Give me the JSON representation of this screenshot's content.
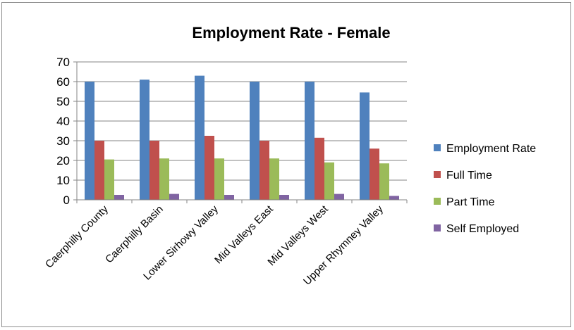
{
  "chart_data": {
    "type": "bar",
    "title": "Employment Rate - Female",
    "xlabel": "",
    "ylabel": "",
    "ylim": [
      0,
      70
    ],
    "yticks": [
      0,
      10,
      20,
      30,
      40,
      50,
      60,
      70
    ],
    "grid": true,
    "legend_position": "right",
    "categories": [
      "Caerphilly County",
      "Caerphilly Basin",
      "Lower Sirhowy Valley",
      "Mid Valleys East",
      "Mid Valleys West",
      "Upper Rhymney Valley"
    ],
    "series": [
      {
        "name": "Employment Rate",
        "color": "#4f81bd",
        "values": [
          60,
          61,
          63,
          60,
          60,
          54.5
        ]
      },
      {
        "name": "Full Time",
        "color": "#c0504d",
        "values": [
          30,
          30,
          32.5,
          30,
          31.5,
          26
        ]
      },
      {
        "name": "Part Time",
        "color": "#9bbb59",
        "values": [
          20.5,
          21,
          21,
          21,
          19,
          18.5
        ]
      },
      {
        "name": "Self Employed",
        "color": "#8064a2",
        "values": [
          2.5,
          3,
          2.5,
          2.5,
          3,
          2
        ]
      }
    ]
  }
}
